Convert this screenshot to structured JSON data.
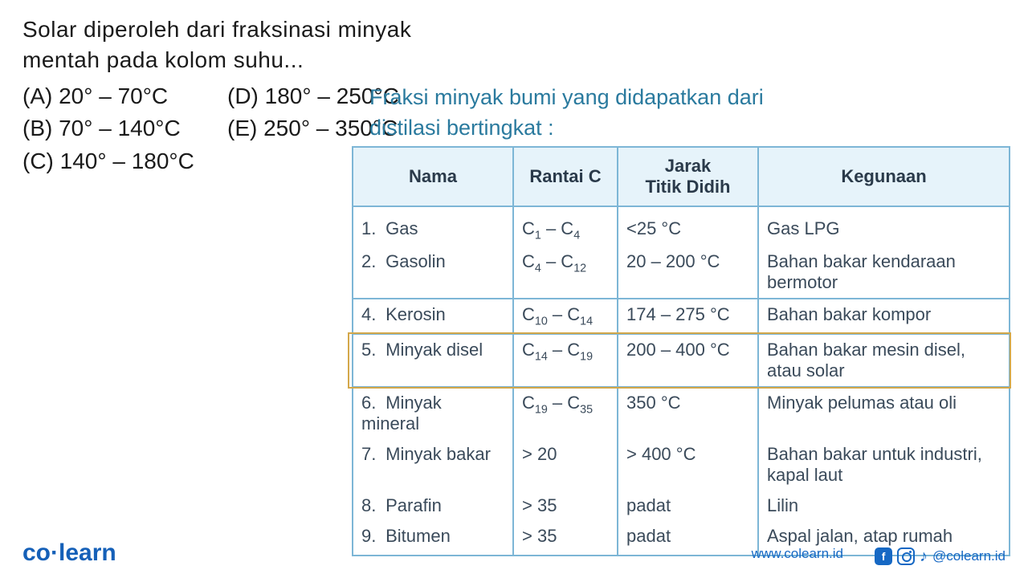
{
  "question": {
    "line1": "Solar diperoleh dari fraksinasi minyak",
    "line2": "mentah pada kolom suhu..."
  },
  "options": {
    "A": "(A) 20° – 70°C",
    "B": "(B) 70° – 140°C",
    "C": "(C) 140° – 180°C",
    "D": "(D) 180° – 250°C",
    "E": "(E) 250° – 350°C"
  },
  "annotation": {
    "line1": "Fraksi minyak bumi yang didapatkan dari",
    "line2": "distilasi bertingkat :"
  },
  "table": {
    "headers": {
      "nama": "Nama",
      "rantai": "Rantai C",
      "jarak_l1": "Jarak",
      "jarak_l2": "Titik Didih",
      "guna": "Kegunaan"
    },
    "rows": [
      {
        "num": "1.",
        "nama": "Gas",
        "r1": "C",
        "s1": "1",
        "dash": " – ",
        "r2": "C",
        "s2": "4",
        "jarak": "<25 °C",
        "guna": "Gas LPG"
      },
      {
        "num": "2.",
        "nama": "Gasolin",
        "r1": "C",
        "s1": "4",
        "dash": " – ",
        "r2": "C",
        "s2": "12",
        "jarak": "20 – 200 °C",
        "guna": "Bahan bakar kendaraan bermotor"
      },
      {
        "num": "4.",
        "nama": "Kerosin",
        "r1": "C",
        "s1": "10",
        "dash": " – ",
        "r2": "C",
        "s2": "14",
        "jarak": "174 – 275 °C",
        "guna": "Bahan bakar kompor"
      },
      {
        "num": "5.",
        "nama": "Minyak disel",
        "r1": "C",
        "s1": "14",
        "dash": " – ",
        "r2": "C",
        "s2": "19",
        "jarak": "200 – 400 °C",
        "guna": "Bahan bakar mesin disel, atau solar"
      },
      {
        "num": "6.",
        "nama": "Minyak mineral",
        "r1": "C",
        "s1": "19",
        "dash": " – ",
        "r2": "C",
        "s2": "35",
        "jarak": "350 °C",
        "guna": "Minyak  pelumas atau oli"
      },
      {
        "num": "7.",
        "nama": "Minyak bakar",
        "r1": "> 20",
        "s1": "",
        "dash": "",
        "r2": "",
        "s2": "",
        "jarak": "> 400 °C",
        "guna": "Bahan bakar untuk industri, kapal laut"
      },
      {
        "num": "8.",
        "nama": "Parafin",
        "r1": "> 35",
        "s1": "",
        "dash": "",
        "r2": "",
        "s2": "",
        "jarak": "padat",
        "guna": "Lilin"
      },
      {
        "num": "9.",
        "nama": "Bitumen",
        "r1": "> 35",
        "s1": "",
        "dash": "",
        "r2": "",
        "s2": "",
        "jarak": "padat",
        "guna": "Aspal jalan, atap rumah"
      }
    ],
    "highlight_row_index": 3,
    "border_color": "#7db6d6",
    "header_bg": "#e6f3fa",
    "highlight_color": "#d4a84a"
  },
  "footer": {
    "logo_co": "co",
    "logo_learn": "learn",
    "url": "www.colearn.id",
    "handle": "@colearn.id"
  },
  "colors": {
    "text": "#1a1a1a",
    "annotation": "#2a7a9e",
    "link": "#1668c4"
  }
}
